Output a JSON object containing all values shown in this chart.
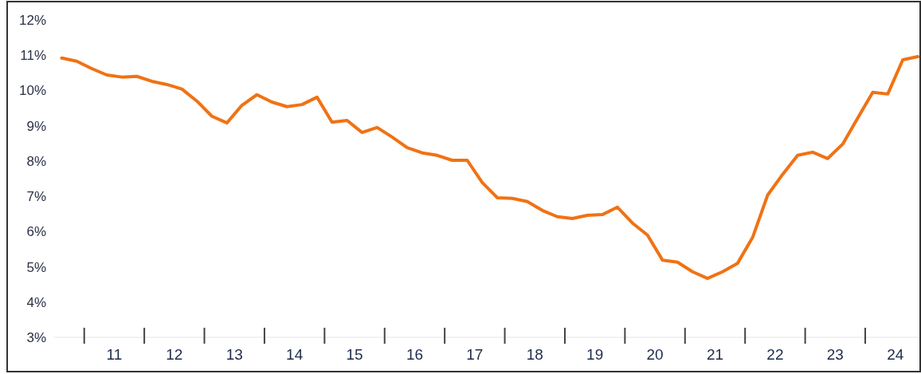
{
  "chart_data": {
    "type": "line",
    "x": [
      10.125,
      10.375,
      10.625,
      10.875,
      11.125,
      11.375,
      11.625,
      11.875,
      12.125,
      12.375,
      12.625,
      12.875,
      13.125,
      13.375,
      13.625,
      13.875,
      14.125,
      14.375,
      14.625,
      14.875,
      15.125,
      15.375,
      15.625,
      15.875,
      16.125,
      16.375,
      16.625,
      16.875,
      17.125,
      17.375,
      17.625,
      17.875,
      18.125,
      18.375,
      18.625,
      18.875,
      19.125,
      19.375,
      19.625,
      19.875,
      20.125,
      20.375,
      20.625,
      20.875,
      21.125,
      21.375,
      21.625,
      21.875,
      22.125,
      22.375,
      22.625,
      22.875,
      23.125,
      23.375,
      23.625,
      23.875,
      24.125,
      24.375
    ],
    "series": [
      {
        "color": "#f07214",
        "values": [
          10.92,
          10.83,
          10.62,
          10.44,
          10.38,
          10.4,
          10.26,
          10.17,
          10.04,
          9.7,
          9.27,
          9.08,
          9.58,
          9.88,
          9.67,
          9.54,
          9.6,
          9.81,
          9.1,
          9.15,
          8.81,
          8.95,
          8.68,
          8.38,
          8.23,
          8.16,
          8.02,
          8.02,
          7.39,
          6.96,
          6.94,
          6.85,
          6.6,
          6.42,
          6.37,
          6.46,
          6.48,
          6.69,
          6.24,
          5.9,
          5.19,
          5.13,
          4.86,
          4.67,
          4.86,
          5.1,
          5.83,
          7.03,
          7.62,
          8.16,
          8.25,
          8.07,
          8.48,
          9.22,
          9.95,
          9.9,
          10.87,
          10.96
        ]
      }
    ],
    "xlim": [
      10,
      24.375
    ],
    "xticks": [
      11,
      12,
      13,
      14,
      15,
      16,
      17,
      18,
      19,
      20,
      21,
      22,
      23,
      24
    ],
    "ylim": [
      3,
      12
    ],
    "yticks": [
      {
        "value": 3,
        "label": "3%"
      },
      {
        "value": 4,
        "label": "4%"
      },
      {
        "value": 5,
        "label": "5%"
      },
      {
        "value": 6,
        "label": "6%"
      },
      {
        "value": 7,
        "label": "7%"
      },
      {
        "value": 8,
        "label": "8%"
      },
      {
        "value": 9,
        "label": "9%"
      },
      {
        "value": 10,
        "label": "10%"
      },
      {
        "value": 11,
        "label": "11%"
      },
      {
        "value": 12,
        "label": "12%"
      }
    ],
    "grid": false,
    "line_style": "solid"
  }
}
